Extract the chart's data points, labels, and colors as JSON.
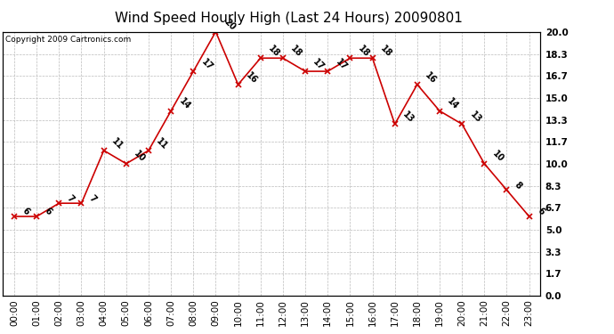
{
  "hours": [
    "00:00",
    "01:00",
    "02:00",
    "03:00",
    "04:00",
    "05:00",
    "06:00",
    "07:00",
    "08:00",
    "09:00",
    "10:00",
    "11:00",
    "12:00",
    "13:00",
    "14:00",
    "15:00",
    "16:00",
    "17:00",
    "18:00",
    "19:00",
    "20:00",
    "21:00",
    "22:00",
    "23:00"
  ],
  "values": [
    6,
    6,
    7,
    7,
    11,
    10,
    11,
    14,
    17,
    20,
    16,
    18,
    18,
    17,
    17,
    18,
    18,
    13,
    16,
    14,
    13,
    10,
    8,
    6
  ],
  "title": "Wind Speed Hourly High (Last 24 Hours) 20090801",
  "copyright_text": "Copyright 2009 Cartronics.com",
  "line_color": "#cc0000",
  "marker_color": "#cc0000",
  "bg_color": "#ffffff",
  "grid_color": "#bbbbbb",
  "ylim": [
    0.0,
    20.0
  ],
  "yticks": [
    0.0,
    1.7,
    3.3,
    5.0,
    6.7,
    8.3,
    10.0,
    11.7,
    13.3,
    15.0,
    16.7,
    18.3,
    20.0
  ],
  "ytick_labels": [
    "0.0",
    "1.7",
    "3.3",
    "5.0",
    "6.7",
    "8.3",
    "10.0",
    "11.7",
    "13.3",
    "15.0",
    "16.7",
    "18.3",
    "20.0"
  ],
  "title_fontsize": 11,
  "label_fontsize": 7.5,
  "annotation_fontsize": 7,
  "copyright_fontsize": 6.5
}
